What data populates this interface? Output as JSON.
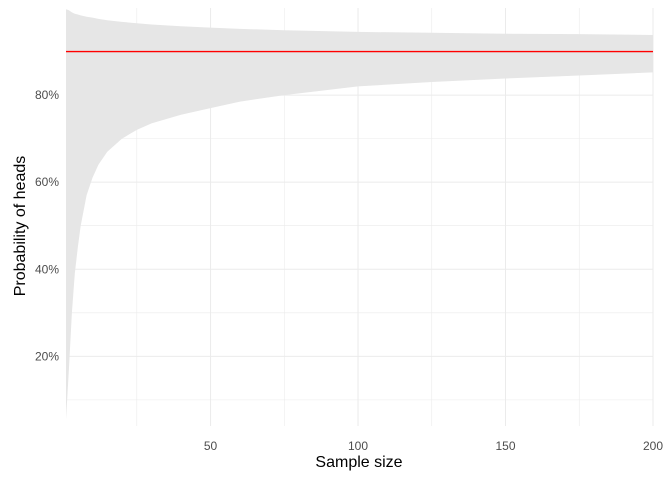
{
  "chart_data": {
    "type": "area",
    "title": "",
    "xlabel": "Sample size",
    "ylabel": "Probability of heads",
    "xlim": [
      1,
      200
    ],
    "ylim": [
      0.04,
      1.0
    ],
    "x_ticks": [
      50,
      100,
      150,
      200
    ],
    "x_tick_labels": [
      "50",
      "100",
      "150",
      "200"
    ],
    "x_minor_ticks": [
      25,
      75,
      125,
      175
    ],
    "y_ticks": [
      0.2,
      0.4,
      0.6,
      0.8
    ],
    "y_tick_labels": [
      "20%",
      "40%",
      "60%",
      "80%"
    ],
    "y_minor_ticks": [
      0.1,
      0.3,
      0.5,
      0.7,
      0.9
    ],
    "grid": true,
    "series": [
      {
        "kind": "ribbon",
        "x": [
          1,
          2,
          3,
          4,
          5,
          6,
          8,
          10,
          12,
          15,
          20,
          25,
          30,
          40,
          50,
          60,
          75,
          100,
          125,
          150,
          175,
          200
        ],
        "lower": [
          0.055,
          0.17,
          0.3,
          0.39,
          0.45,
          0.5,
          0.57,
          0.61,
          0.64,
          0.67,
          0.7,
          0.72,
          0.735,
          0.755,
          0.77,
          0.785,
          0.8,
          0.82,
          0.83,
          0.838,
          0.845,
          0.852
        ],
        "upper": [
          0.997,
          0.995,
          0.99,
          0.987,
          0.985,
          0.983,
          0.98,
          0.978,
          0.975,
          0.972,
          0.968,
          0.965,
          0.962,
          0.958,
          0.955,
          0.952,
          0.949,
          0.945,
          0.943,
          0.941,
          0.94,
          0.938
        ]
      },
      {
        "kind": "hline",
        "y": 0.9,
        "color": "#ff0000"
      }
    ],
    "colors": {
      "ribbon": "#e6e6e6",
      "reference_line": "#ff0000",
      "grid": "#ebebeb",
      "background": "#ffffff"
    }
  }
}
